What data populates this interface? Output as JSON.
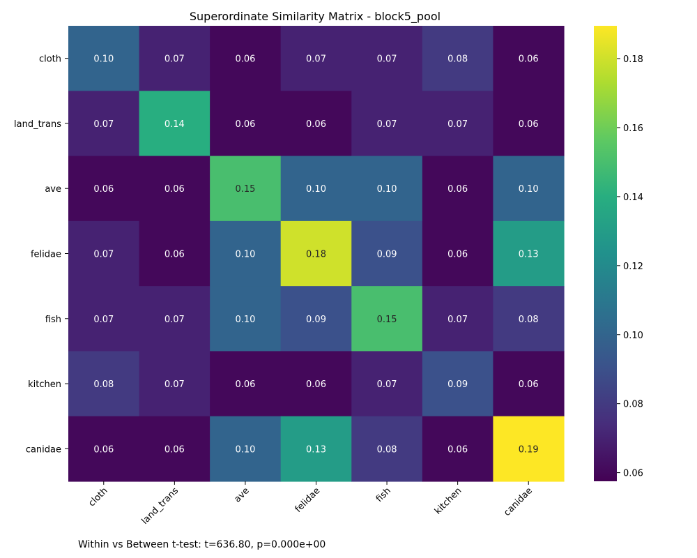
{
  "chart_data": {
    "type": "heatmap",
    "title": "Superordinate Similarity Matrix - block5_pool",
    "xlabel": "",
    "ylabel": "",
    "rows": [
      "cloth",
      "land_trans",
      "ave",
      "felidae",
      "fish",
      "kitchen",
      "canidae"
    ],
    "columns": [
      "cloth",
      "land_trans",
      "ave",
      "felidae",
      "fish",
      "kitchen",
      "canidae"
    ],
    "values": [
      [
        0.1,
        0.07,
        0.06,
        0.07,
        0.07,
        0.08,
        0.06
      ],
      [
        0.07,
        0.14,
        0.06,
        0.06,
        0.07,
        0.07,
        0.06
      ],
      [
        0.06,
        0.06,
        0.15,
        0.1,
        0.1,
        0.06,
        0.1
      ],
      [
        0.07,
        0.06,
        0.1,
        0.18,
        0.09,
        0.06,
        0.13
      ],
      [
        0.07,
        0.07,
        0.1,
        0.09,
        0.15,
        0.07,
        0.08
      ],
      [
        0.08,
        0.07,
        0.06,
        0.06,
        0.07,
        0.09,
        0.06
      ],
      [
        0.06,
        0.06,
        0.1,
        0.13,
        0.08,
        0.06,
        0.19
      ]
    ],
    "colormap": "viridis",
    "color_range": [
      0.0575,
      0.1895
    ],
    "colorbar_ticks": [
      0.06,
      0.08,
      0.1,
      0.12,
      0.14,
      0.16,
      0.18
    ],
    "colorbar_tick_labels": [
      "0.06",
      "0.08",
      "0.10",
      "0.12",
      "0.14",
      "0.16",
      "0.18"
    ],
    "annotation_format": "0.00",
    "grid": false
  },
  "footer": {
    "note": "Within vs Between t-test: t=636.80, p=0.000e+00"
  }
}
